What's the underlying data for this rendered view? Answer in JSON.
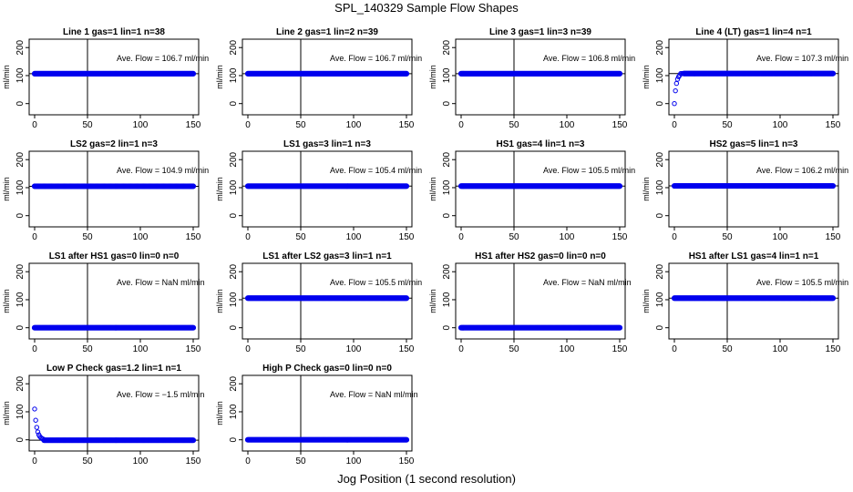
{
  "figure": {
    "title": "SPL_140329  Sample Flow Shapes",
    "xlabel": "Jog Position (1 second resolution)",
    "ylabel": "ml/min",
    "annotation_prefix": "Ave. Flow = ",
    "annotation_unit": "ml/min"
  },
  "chart_data": [
    {
      "type": "scatter",
      "title": "Line 1 gas=1 lin=1 n=38",
      "flow_text": "106.7",
      "shape": "flat",
      "level": 106.7,
      "xticks": [
        0,
        50,
        100,
        150
      ],
      "yticks": [
        0,
        100,
        200
      ],
      "xlim": [
        0,
        150
      ],
      "ylim": [
        -40,
        230
      ],
      "ref_x": 50,
      "ref_y": 106.7
    },
    {
      "type": "scatter",
      "title": "Line 2 gas=1 lin=2 n=39",
      "flow_text": "106.7",
      "shape": "flat",
      "level": 106.7,
      "xticks": [
        0,
        50,
        100,
        150
      ],
      "yticks": [
        0,
        100,
        200
      ],
      "xlim": [
        0,
        150
      ],
      "ylim": [
        -40,
        230
      ],
      "ref_x": 50,
      "ref_y": 106.7
    },
    {
      "type": "scatter",
      "title": "Line 3 gas=1 lin=3 n=39",
      "flow_text": "106.8",
      "shape": "flat",
      "level": 106.8,
      "xticks": [
        0,
        50,
        100,
        150
      ],
      "yticks": [
        0,
        100,
        200
      ],
      "xlim": [
        0,
        150
      ],
      "ylim": [
        -40,
        230
      ],
      "ref_x": 50,
      "ref_y": 106.8
    },
    {
      "type": "scatter",
      "title": "Line 4 (LT) gas=1 lin=4 n=1",
      "flow_text": "107.3",
      "shape": "rise",
      "level": 107.3,
      "xticks": [
        0,
        50,
        100,
        150
      ],
      "yticks": [
        0,
        100,
        200
      ],
      "xlim": [
        0,
        150
      ],
      "ylim": [
        -40,
        230
      ],
      "ref_x": 50,
      "ref_y": 107.3
    },
    {
      "type": "scatter",
      "title": "LS2 gas=2 lin=1 n=3",
      "flow_text": "104.9",
      "shape": "flat",
      "level": 104.9,
      "xticks": [
        0,
        50,
        100,
        150
      ],
      "yticks": [
        0,
        100,
        200
      ],
      "xlim": [
        0,
        150
      ],
      "ylim": [
        -40,
        230
      ],
      "ref_x": 50,
      "ref_y": 104.9
    },
    {
      "type": "scatter",
      "title": "LS1 gas=3 lin=1 n=3",
      "flow_text": "105.4",
      "shape": "flat",
      "level": 105.4,
      "xticks": [
        0,
        50,
        100,
        150
      ],
      "yticks": [
        0,
        100,
        200
      ],
      "xlim": [
        0,
        150
      ],
      "ylim": [
        -40,
        230
      ],
      "ref_x": 50,
      "ref_y": 105.4
    },
    {
      "type": "scatter",
      "title": "HS1 gas=4 lin=1 n=3",
      "flow_text": "105.5",
      "shape": "flat",
      "level": 105.5,
      "xticks": [
        0,
        50,
        100,
        150
      ],
      "yticks": [
        0,
        100,
        200
      ],
      "xlim": [
        0,
        150
      ],
      "ylim": [
        -40,
        230
      ],
      "ref_x": 50,
      "ref_y": 105.5
    },
    {
      "type": "scatter",
      "title": "HS2 gas=5 lin=1 n=3",
      "flow_text": "106.2",
      "shape": "flat",
      "level": 106.2,
      "xticks": [
        0,
        50,
        100,
        150
      ],
      "yticks": [
        0,
        100,
        200
      ],
      "xlim": [
        0,
        150
      ],
      "ylim": [
        -40,
        230
      ],
      "ref_x": 50,
      "ref_y": 106.2
    },
    {
      "type": "scatter",
      "title": "LS1 after HS1 gas=0 lin=0 n=0",
      "flow_text": "NaN",
      "shape": "flat",
      "level": 0,
      "xticks": [
        0,
        50,
        100,
        150
      ],
      "yticks": [
        0,
        100,
        200
      ],
      "xlim": [
        0,
        150
      ],
      "ylim": [
        -40,
        230
      ],
      "ref_x": 50,
      "ref_y": null
    },
    {
      "type": "scatter",
      "title": "LS1 after LS2 gas=3 lin=1 n=1",
      "flow_text": "105.5",
      "shape": "flat",
      "level": 105.5,
      "xticks": [
        0,
        50,
        100,
        150
      ],
      "yticks": [
        0,
        100,
        200
      ],
      "xlim": [
        0,
        150
      ],
      "ylim": [
        -40,
        230
      ],
      "ref_x": 50,
      "ref_y": 105.5
    },
    {
      "type": "scatter",
      "title": "HS1 after HS2 gas=0 lin=0 n=0",
      "flow_text": "NaN",
      "shape": "flat",
      "level": 0,
      "xticks": [
        0,
        50,
        100,
        150
      ],
      "yticks": [
        0,
        100,
        200
      ],
      "xlim": [
        0,
        150
      ],
      "ylim": [
        -40,
        230
      ],
      "ref_x": 50,
      "ref_y": null
    },
    {
      "type": "scatter",
      "title": "HS1 after LS1 gas=4 lin=1 n=1",
      "flow_text": "105.5",
      "shape": "flat",
      "level": 105.5,
      "xticks": [
        0,
        50,
        100,
        150
      ],
      "yticks": [
        0,
        100,
        200
      ],
      "xlim": [
        0,
        150
      ],
      "ylim": [
        -40,
        230
      ],
      "ref_x": 50,
      "ref_y": 105.5
    },
    {
      "type": "scatter",
      "title": "Low P Check gas=1.2 lin=1 n=1",
      "flow_text": "−1.5",
      "shape": "decay",
      "level": -1.5,
      "xticks": [
        0,
        50,
        100,
        150
      ],
      "yticks": [
        0,
        100,
        200
      ],
      "xlim": [
        0,
        150
      ],
      "ylim": [
        -40,
        230
      ],
      "ref_x": 50,
      "ref_y": -1.5
    },
    {
      "type": "scatter",
      "title": "High P Check gas=0 lin=0 n=0",
      "flow_text": "NaN",
      "shape": "flat",
      "level": 0,
      "xticks": [
        0,
        50,
        100,
        150
      ],
      "yticks": [
        0,
        100,
        200
      ],
      "xlim": [
        0,
        150
      ],
      "ylim": [
        -40,
        230
      ],
      "ref_x": 50,
      "ref_y": null
    }
  ],
  "colors": {
    "points": "#0000ee",
    "axes": "#000000",
    "reference": "#000000"
  }
}
